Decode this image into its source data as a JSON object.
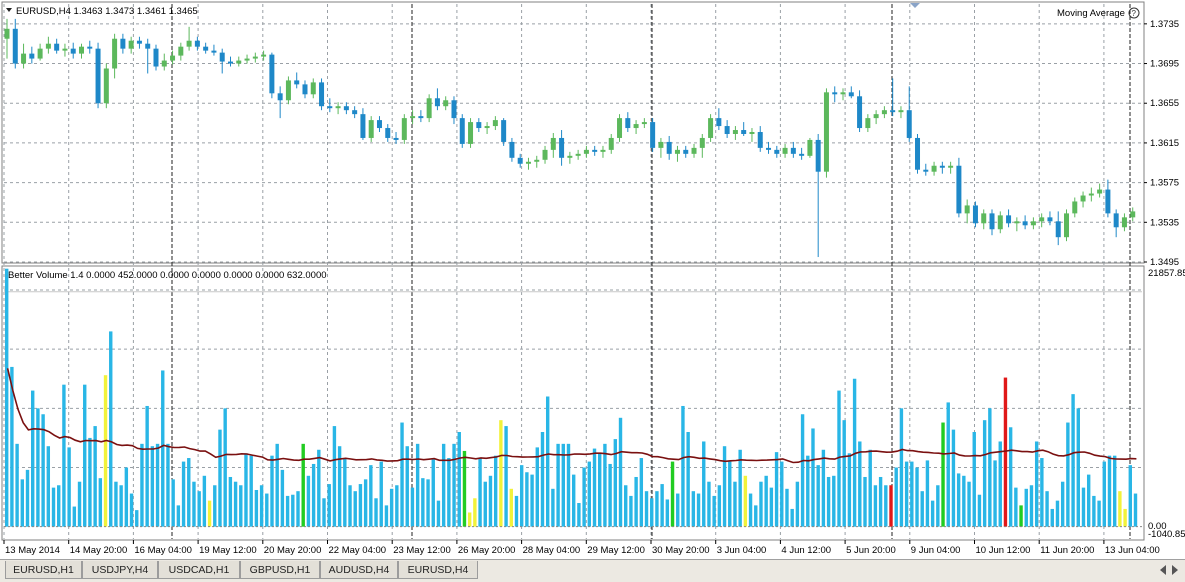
{
  "window": {
    "symbol_title": "EURUSD,H4  1.3463 1.3473 1.3461 1.3465",
    "indicator_main": "Moving Average"
  },
  "indicator": {
    "label": "Better Volume 1.4 0.0000 452.0000 0.0000 0.0000 0.0000 0.0000 632.0000",
    "scale_max": "21857.85",
    "scale_zero": "0.00",
    "scale_min": "-1040.85"
  },
  "price_axis": [
    "1.3735",
    "1.3695",
    "1.3655",
    "1.3615",
    "1.3575",
    "1.3535",
    "1.3495"
  ],
  "time_axis": [
    "13 May 2014",
    "14 May 20:00",
    "16 May 04:00",
    "19 May 12:00",
    "20 May 20:00",
    "22 May 04:00",
    "23 May 12:00",
    "26 May 20:00",
    "28 May 04:00",
    "29 May 12:00",
    "30 May 20:00",
    "3 Jun 04:00",
    "4 Jun 12:00",
    "5 Jun 20:00",
    "9 Jun 04:00",
    "10 Jun 12:00",
    "11 Jun 20:00",
    "13 Jun 04:00"
  ],
  "tabs": [
    {
      "label": "EURUSD,H1",
      "active": false
    },
    {
      "label": "USDJPY,H4",
      "active": false
    },
    {
      "label": "USDCAD,H1",
      "active": false
    },
    {
      "label": "GBPUSD,H1",
      "active": false
    },
    {
      "label": "AUDUSD,H4",
      "active": false
    },
    {
      "label": "EURUSD,H4",
      "active": true
    }
  ],
  "colors": {
    "bull": "#5cb85c",
    "bear": "#1e88c8",
    "vol_blue": "#29b6e6",
    "vol_green": "#22cc22",
    "vol_yellow": "#f2f23a",
    "vol_red": "#e01818",
    "ma_line": "#7a1010",
    "grid": "#9aa0a6"
  },
  "chart_data": {
    "type": "candlestick",
    "price_range": [
      1.3495,
      1.3755
    ],
    "candles": [
      {
        "o": 1.372,
        "h": 1.374,
        "l": 1.37,
        "c": 1.373
      },
      {
        "o": 1.373,
        "h": 1.374,
        "l": 1.369,
        "c": 1.3695
      },
      {
        "o": 1.3695,
        "h": 1.3715,
        "l": 1.369,
        "c": 1.3705
      },
      {
        "o": 1.3705,
        "h": 1.3712,
        "l": 1.3695,
        "c": 1.37
      },
      {
        "o": 1.37,
        "h": 1.3715,
        "l": 1.3698,
        "c": 1.371
      },
      {
        "o": 1.371,
        "h": 1.3722,
        "l": 1.3705,
        "c": 1.3715
      },
      {
        "o": 1.3715,
        "h": 1.372,
        "l": 1.3705,
        "c": 1.3708
      },
      {
        "o": 1.3708,
        "h": 1.3715,
        "l": 1.3702,
        "c": 1.371
      },
      {
        "o": 1.371,
        "h": 1.3716,
        "l": 1.37,
        "c": 1.3705
      },
      {
        "o": 1.3705,
        "h": 1.3715,
        "l": 1.37,
        "c": 1.3712
      },
      {
        "o": 1.3712,
        "h": 1.3718,
        "l": 1.3705,
        "c": 1.371
      },
      {
        "o": 1.371,
        "h": 1.3716,
        "l": 1.365,
        "c": 1.3655
      },
      {
        "o": 1.3655,
        "h": 1.3695,
        "l": 1.365,
        "c": 1.369
      },
      {
        "o": 1.369,
        "h": 1.3725,
        "l": 1.368,
        "c": 1.372
      },
      {
        "o": 1.372,
        "h": 1.3725,
        "l": 1.3705,
        "c": 1.371
      },
      {
        "o": 1.371,
        "h": 1.3722,
        "l": 1.3705,
        "c": 1.3718
      },
      {
        "o": 1.3718,
        "h": 1.3722,
        "l": 1.371,
        "c": 1.3715
      },
      {
        "o": 1.3715,
        "h": 1.372,
        "l": 1.3685,
        "c": 1.371
      },
      {
        "o": 1.371,
        "h": 1.3714,
        "l": 1.3688,
        "c": 1.3692
      },
      {
        "o": 1.3692,
        "h": 1.3705,
        "l": 1.3688,
        "c": 1.3698
      },
      {
        "o": 1.3698,
        "h": 1.3708,
        "l": 1.3694,
        "c": 1.3703
      },
      {
        "o": 1.3703,
        "h": 1.3716,
        "l": 1.3698,
        "c": 1.3712
      },
      {
        "o": 1.3712,
        "h": 1.3732,
        "l": 1.3708,
        "c": 1.3718
      },
      {
        "o": 1.3718,
        "h": 1.3722,
        "l": 1.3708,
        "c": 1.3712
      },
      {
        "o": 1.3712,
        "h": 1.3716,
        "l": 1.3705,
        "c": 1.3708
      },
      {
        "o": 1.3708,
        "h": 1.3714,
        "l": 1.3703,
        "c": 1.3706
      },
      {
        "o": 1.3706,
        "h": 1.371,
        "l": 1.3685,
        "c": 1.3697
      },
      {
        "o": 1.3697,
        "h": 1.3702,
        "l": 1.3692,
        "c": 1.3695
      },
      {
        "o": 1.3695,
        "h": 1.3702,
        "l": 1.3692,
        "c": 1.3698
      },
      {
        "o": 1.3698,
        "h": 1.3704,
        "l": 1.3695,
        "c": 1.37
      },
      {
        "o": 1.37,
        "h": 1.3706,
        "l": 1.3696,
        "c": 1.3702
      },
      {
        "o": 1.3702,
        "h": 1.3708,
        "l": 1.3698,
        "c": 1.3704
      },
      {
        "o": 1.3704,
        "h": 1.3706,
        "l": 1.366,
        "c": 1.3665
      },
      {
        "o": 1.3665,
        "h": 1.3672,
        "l": 1.364,
        "c": 1.3658
      },
      {
        "o": 1.3658,
        "h": 1.3682,
        "l": 1.3654,
        "c": 1.3678
      },
      {
        "o": 1.3678,
        "h": 1.3686,
        "l": 1.367,
        "c": 1.3674
      },
      {
        "o": 1.3674,
        "h": 1.3678,
        "l": 1.366,
        "c": 1.3664
      },
      {
        "o": 1.3664,
        "h": 1.368,
        "l": 1.366,
        "c": 1.3676
      },
      {
        "o": 1.3676,
        "h": 1.368,
        "l": 1.3648,
        "c": 1.3652
      },
      {
        "o": 1.3652,
        "h": 1.366,
        "l": 1.3646,
        "c": 1.365
      },
      {
        "o": 1.365,
        "h": 1.3656,
        "l": 1.3644,
        "c": 1.3652
      },
      {
        "o": 1.3652,
        "h": 1.3656,
        "l": 1.3644,
        "c": 1.3648
      },
      {
        "o": 1.3648,
        "h": 1.3652,
        "l": 1.364,
        "c": 1.3644
      },
      {
        "o": 1.3644,
        "h": 1.365,
        "l": 1.3618,
        "c": 1.362
      },
      {
        "o": 1.362,
        "h": 1.3642,
        "l": 1.3616,
        "c": 1.3638
      },
      {
        "o": 1.3638,
        "h": 1.3642,
        "l": 1.3626,
        "c": 1.363
      },
      {
        "o": 1.363,
        "h": 1.3634,
        "l": 1.3616,
        "c": 1.362
      },
      {
        "o": 1.362,
        "h": 1.3626,
        "l": 1.3614,
        "c": 1.3618
      },
      {
        "o": 1.3618,
        "h": 1.3644,
        "l": 1.3614,
        "c": 1.364
      },
      {
        "o": 1.364,
        "h": 1.3648,
        "l": 1.3634,
        "c": 1.3642
      },
      {
        "o": 1.3642,
        "h": 1.3648,
        "l": 1.3636,
        "c": 1.364
      },
      {
        "o": 1.364,
        "h": 1.3664,
        "l": 1.3636,
        "c": 1.366
      },
      {
        "o": 1.366,
        "h": 1.367,
        "l": 1.3648,
        "c": 1.3652
      },
      {
        "o": 1.3652,
        "h": 1.3662,
        "l": 1.3648,
        "c": 1.3658
      },
      {
        "o": 1.3658,
        "h": 1.3662,
        "l": 1.3634,
        "c": 1.364
      },
      {
        "o": 1.364,
        "h": 1.3644,
        "l": 1.361,
        "c": 1.3614
      },
      {
        "o": 1.3614,
        "h": 1.364,
        "l": 1.361,
        "c": 1.3636
      },
      {
        "o": 1.3636,
        "h": 1.364,
        "l": 1.3626,
        "c": 1.363
      },
      {
        "o": 1.363,
        "h": 1.3636,
        "l": 1.3624,
        "c": 1.3632
      },
      {
        "o": 1.3632,
        "h": 1.3642,
        "l": 1.3628,
        "c": 1.3638
      },
      {
        "o": 1.3638,
        "h": 1.364,
        "l": 1.3612,
        "c": 1.3616
      },
      {
        "o": 1.3616,
        "h": 1.362,
        "l": 1.3596,
        "c": 1.36
      },
      {
        "o": 1.36,
        "h": 1.3604,
        "l": 1.359,
        "c": 1.3594
      },
      {
        "o": 1.3594,
        "h": 1.36,
        "l": 1.3588,
        "c": 1.3596
      },
      {
        "o": 1.3596,
        "h": 1.3602,
        "l": 1.359,
        "c": 1.3598
      },
      {
        "o": 1.3598,
        "h": 1.3612,
        "l": 1.3594,
        "c": 1.3608
      },
      {
        "o": 1.3608,
        "h": 1.3625,
        "l": 1.36,
        "c": 1.362
      },
      {
        "o": 1.362,
        "h": 1.3628,
        "l": 1.3592,
        "c": 1.36
      },
      {
        "o": 1.36,
        "h": 1.3606,
        "l": 1.3594,
        "c": 1.3602
      },
      {
        "o": 1.3602,
        "h": 1.3608,
        "l": 1.3598,
        "c": 1.3604
      },
      {
        "o": 1.3604,
        "h": 1.3612,
        "l": 1.36,
        "c": 1.3608
      },
      {
        "o": 1.3608,
        "h": 1.3612,
        "l": 1.3602,
        "c": 1.3606
      },
      {
        "o": 1.3606,
        "h": 1.3612,
        "l": 1.36,
        "c": 1.3608
      },
      {
        "o": 1.3608,
        "h": 1.3624,
        "l": 1.3604,
        "c": 1.362
      },
      {
        "o": 1.362,
        "h": 1.3644,
        "l": 1.3616,
        "c": 1.364
      },
      {
        "o": 1.364,
        "h": 1.3646,
        "l": 1.3626,
        "c": 1.363
      },
      {
        "o": 1.363,
        "h": 1.3638,
        "l": 1.3624,
        "c": 1.3634
      },
      {
        "o": 1.3634,
        "h": 1.364,
        "l": 1.363,
        "c": 1.3636
      },
      {
        "o": 1.3636,
        "h": 1.364,
        "l": 1.3606,
        "c": 1.361
      },
      {
        "o": 1.361,
        "h": 1.362,
        "l": 1.36,
        "c": 1.3616
      },
      {
        "o": 1.3616,
        "h": 1.3622,
        "l": 1.3598,
        "c": 1.3604
      },
      {
        "o": 1.3604,
        "h": 1.3612,
        "l": 1.3596,
        "c": 1.3608
      },
      {
        "o": 1.3608,
        "h": 1.3612,
        "l": 1.36,
        "c": 1.3604
      },
      {
        "o": 1.3604,
        "h": 1.3614,
        "l": 1.36,
        "c": 1.361
      },
      {
        "o": 1.361,
        "h": 1.3624,
        "l": 1.36,
        "c": 1.362
      },
      {
        "o": 1.362,
        "h": 1.3644,
        "l": 1.3616,
        "c": 1.364
      },
      {
        "o": 1.364,
        "h": 1.365,
        "l": 1.3628,
        "c": 1.3632
      },
      {
        "o": 1.3632,
        "h": 1.3638,
        "l": 1.362,
        "c": 1.3624
      },
      {
        "o": 1.3624,
        "h": 1.3632,
        "l": 1.3618,
        "c": 1.3628
      },
      {
        "o": 1.3628,
        "h": 1.3636,
        "l": 1.3622,
        "c": 1.3624
      },
      {
        "o": 1.3624,
        "h": 1.363,
        "l": 1.3616,
        "c": 1.3626
      },
      {
        "o": 1.3626,
        "h": 1.3632,
        "l": 1.3606,
        "c": 1.361
      },
      {
        "o": 1.361,
        "h": 1.3616,
        "l": 1.3604,
        "c": 1.3608
      },
      {
        "o": 1.3608,
        "h": 1.3612,
        "l": 1.36,
        "c": 1.3604
      },
      {
        "o": 1.3604,
        "h": 1.3614,
        "l": 1.36,
        "c": 1.361
      },
      {
        "o": 1.361,
        "h": 1.3616,
        "l": 1.36,
        "c": 1.3604
      },
      {
        "o": 1.3604,
        "h": 1.361,
        "l": 1.3598,
        "c": 1.3602
      },
      {
        "o": 1.3602,
        "h": 1.362,
        "l": 1.36,
        "c": 1.3618
      },
      {
        "o": 1.3618,
        "h": 1.3624,
        "l": 1.35,
        "c": 1.3586
      },
      {
        "o": 1.3586,
        "h": 1.367,
        "l": 1.358,
        "c": 1.3666
      },
      {
        "o": 1.3666,
        "h": 1.3672,
        "l": 1.3656,
        "c": 1.3664
      },
      {
        "o": 1.3664,
        "h": 1.367,
        "l": 1.3658,
        "c": 1.3666
      },
      {
        "o": 1.3666,
        "h": 1.3672,
        "l": 1.366,
        "c": 1.3662
      },
      {
        "o": 1.3662,
        "h": 1.3668,
        "l": 1.3626,
        "c": 1.363
      },
      {
        "o": 1.363,
        "h": 1.3644,
        "l": 1.3626,
        "c": 1.364
      },
      {
        "o": 1.364,
        "h": 1.3648,
        "l": 1.3634,
        "c": 1.3644
      },
      {
        "o": 1.3644,
        "h": 1.3652,
        "l": 1.364,
        "c": 1.3648
      },
      {
        "o": 1.3648,
        "h": 1.368,
        "l": 1.3642,
        "c": 1.3646
      },
      {
        "o": 1.3646,
        "h": 1.3652,
        "l": 1.364,
        "c": 1.3648
      },
      {
        "o": 1.3648,
        "h": 1.3672,
        "l": 1.3616,
        "c": 1.362
      },
      {
        "o": 1.362,
        "h": 1.3624,
        "l": 1.3584,
        "c": 1.3588
      },
      {
        "o": 1.3588,
        "h": 1.3594,
        "l": 1.3582,
        "c": 1.3586
      },
      {
        "o": 1.3586,
        "h": 1.3596,
        "l": 1.3582,
        "c": 1.3592
      },
      {
        "o": 1.3592,
        "h": 1.3596,
        "l": 1.3584,
        "c": 1.359
      },
      {
        "o": 1.359,
        "h": 1.3596,
        "l": 1.3584,
        "c": 1.3592
      },
      {
        "o": 1.3592,
        "h": 1.36,
        "l": 1.354,
        "c": 1.3544
      },
      {
        "o": 1.3544,
        "h": 1.3558,
        "l": 1.3534,
        "c": 1.3552
      },
      {
        "o": 1.3552,
        "h": 1.3556,
        "l": 1.353,
        "c": 1.3534
      },
      {
        "o": 1.3534,
        "h": 1.3548,
        "l": 1.3528,
        "c": 1.3544
      },
      {
        "o": 1.3544,
        "h": 1.3548,
        "l": 1.3522,
        "c": 1.3528
      },
      {
        "o": 1.3528,
        "h": 1.3546,
        "l": 1.3524,
        "c": 1.3542
      },
      {
        "o": 1.3542,
        "h": 1.3548,
        "l": 1.353,
        "c": 1.3534
      },
      {
        "o": 1.3534,
        "h": 1.354,
        "l": 1.3526,
        "c": 1.3536
      },
      {
        "o": 1.3536,
        "h": 1.3542,
        "l": 1.3528,
        "c": 1.3532
      },
      {
        "o": 1.3532,
        "h": 1.354,
        "l": 1.3528,
        "c": 1.3536
      },
      {
        "o": 1.3536,
        "h": 1.3544,
        "l": 1.353,
        "c": 1.354
      },
      {
        "o": 1.354,
        "h": 1.3546,
        "l": 1.3532,
        "c": 1.3536
      },
      {
        "o": 1.3536,
        "h": 1.3546,
        "l": 1.3512,
        "c": 1.352
      },
      {
        "o": 1.352,
        "h": 1.3548,
        "l": 1.3516,
        "c": 1.3544
      },
      {
        "o": 1.3544,
        "h": 1.356,
        "l": 1.354,
        "c": 1.3556
      },
      {
        "o": 1.3556,
        "h": 1.3566,
        "l": 1.355,
        "c": 1.3562
      },
      {
        "o": 1.3562,
        "h": 1.357,
        "l": 1.3556,
        "c": 1.3564
      },
      {
        "o": 1.3564,
        "h": 1.3574,
        "l": 1.356,
        "c": 1.3568
      },
      {
        "o": 1.3568,
        "h": 1.3578,
        "l": 1.354,
        "c": 1.3544
      },
      {
        "o": 1.3544,
        "h": 1.3548,
        "l": 1.352,
        "c": 1.353
      },
      {
        "o": 1.353,
        "h": 1.3544,
        "l": 1.3526,
        "c": 1.354
      },
      {
        "o": 1.354,
        "h": 1.355,
        "l": 1.3536,
        "c": 1.3546
      }
    ],
    "volume_range": [
      -1040.85,
      21857.85
    ],
    "volumes": [
      21800,
      13500,
      7000,
      4000,
      4800,
      11500,
      10000,
      9500,
      6800,
      3300,
      3500,
      12000,
      6700,
      1700,
      3800,
      12000,
      7500,
      8500,
      4100,
      12800,
      16500,
      3800,
      3500,
      5000,
      2800,
      1400,
      7000,
      10200,
      6800,
      7000,
      13200,
      7000,
      4000,
      1800,
      5500,
      5800,
      3800,
      3000,
      4300,
      2200,
      3500,
      8200,
      10000,
      4200,
      3800,
      3500,
      6200,
      6000,
      3100,
      3500,
      2800,
      6000,
      7000,
      4800,
      2600,
      2700,
      3000,
      7000,
      4300,
      5300,
      6500,
      2400,
      3600,
      8500,
      6800,
      5800,
      3500,
      3000,
      3600,
      4000,
      5200,
      2400,
      5500,
      1800,
      3200,
      3500,
      8800,
      6800,
      3300,
      7000,
      4100,
      4000,
      5800,
      2200,
      7000,
      5800,
      7000,
      8000,
      6400,
      1200,
      2400,
      5800,
      3800,
      4300,
      6000,
      9000,
      8500,
      3200,
      2600,
      5200,
      4600,
      4400,
      6700,
      8000,
      11000,
      3200,
      7000,
      7000,
      7000,
      4400,
      2000,
      5000,
      5500,
      6600,
      6200,
      7000,
      5300,
      7400,
      9200,
      3500,
      2600,
      4200,
      5800,
      3000,
      2400,
      3000,
      3600,
      2300,
      5500,
      2800,
      10200,
      8000,
      3000,
      2800,
      7200,
      3800,
      2600,
      3500,
      6800,
      5500,
      3800,
      6500,
      4300,
      2800,
      1800,
      3800,
      4300,
      3300,
      6300,
      5500,
      3200,
      1500,
      3800,
      9500,
      6000,
      8300,
      5200,
      6500,
      4200,
      4300,
      11500,
      9000,
      6200,
      12500,
      7200,
      4200,
      6500,
      3500,
      4200,
      3500,
      3500,
      5000,
      10000,
      5500,
      5500,
      5000,
      3000,
      5600,
      2200,
      3500,
      8800,
      10500,
      8200,
      4500,
      4300,
      3800,
      8000,
      2700,
      9000,
      10000,
      5600,
      7200,
      12600,
      8400,
      3300,
      1800,
      3200,
      3500,
      7200,
      5800,
      3000,
      1500,
      2200,
      3800,
      8800,
      11200,
      10000,
      3300,
      4400,
      2600,
      2200,
      5500,
      6000,
      6000,
      3000,
      1500,
      5200,
      2800
    ],
    "volume_colors": {
      "yellow": [
        19,
        39,
        89,
        90,
        95,
        97,
        142,
        192,
        214,
        215,
        237,
        281
      ],
      "green": [
        57,
        88,
        128,
        180,
        195,
        245,
        261
      ],
      "red": [
        170,
        192
      ]
    },
    "moving_average_level": 6500,
    "current_price": 1.3465
  }
}
